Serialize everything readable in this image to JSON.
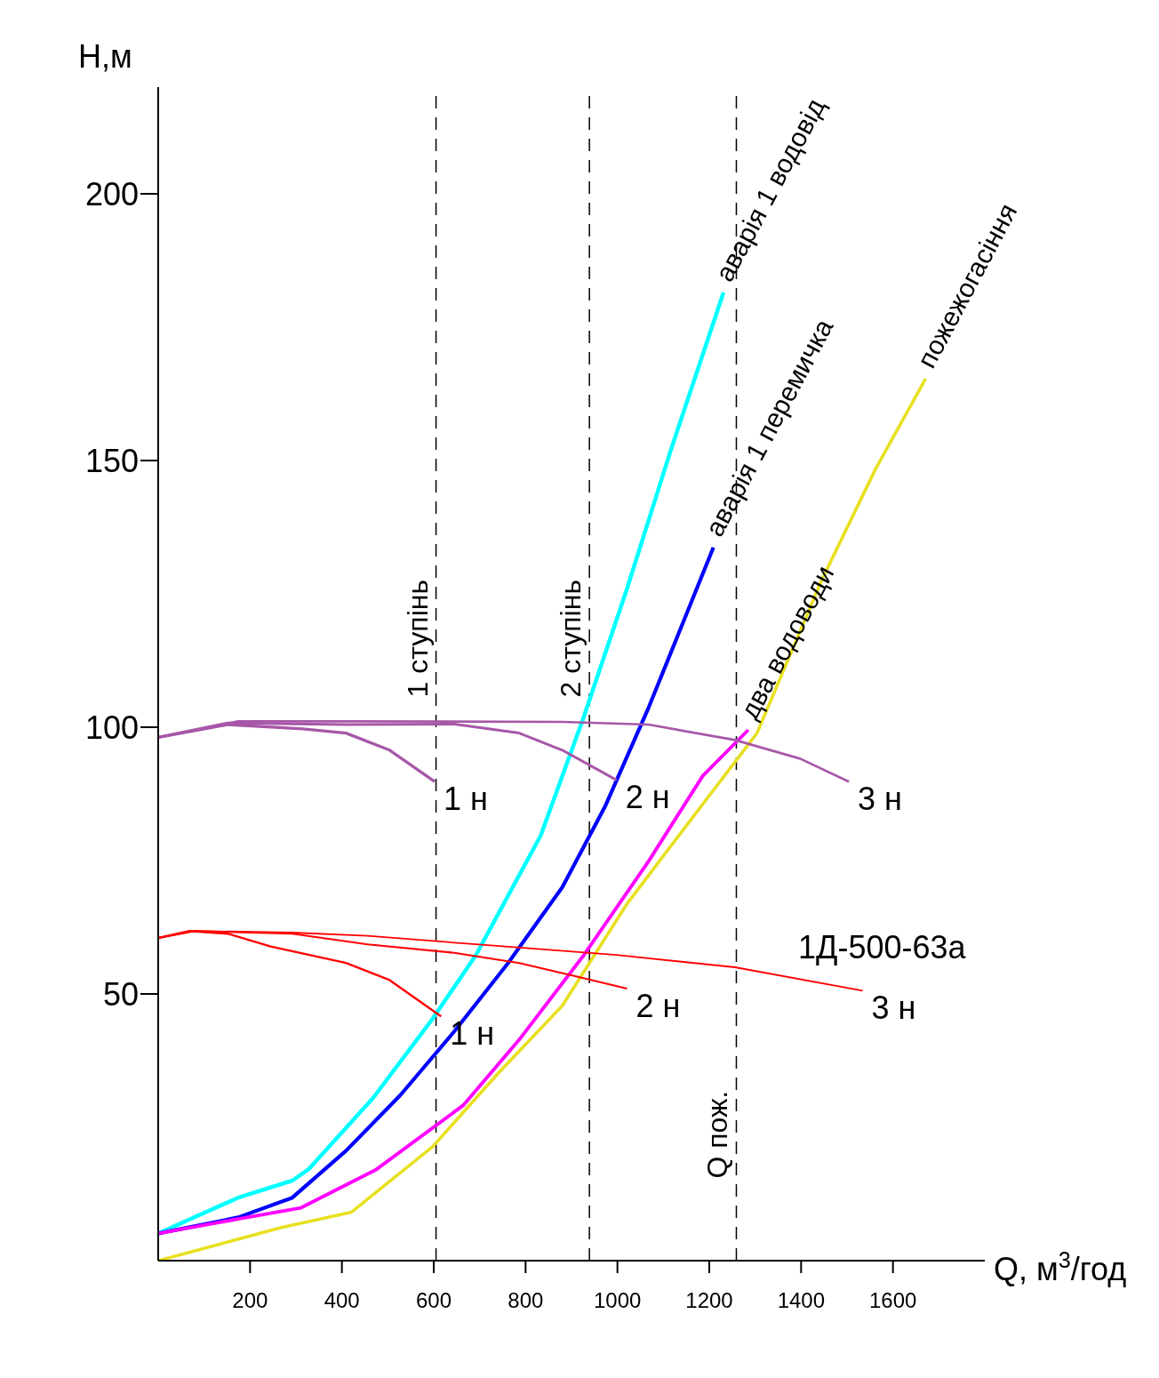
{
  "chart_data": {
    "type": "line",
    "xlabel": "Q, м$^{3}$/год",
    "ylabel": "H,м",
    "xlim": [
      0,
      1800
    ],
    "ylim": [
      0,
      220
    ],
    "xticks": [
      200,
      400,
      600,
      800,
      1000,
      1200,
      1400,
      1600
    ],
    "yticks": [
      50,
      100,
      150,
      200
    ],
    "marker": "none",
    "line_style": "solid",
    "series": [
      {
        "name": "аварія 1 водовід",
        "color": "#00ffff",
        "x": [
          0,
          174,
          292,
          327,
          468,
          598,
          692,
          833,
          927,
          1021,
          1115,
          1231
        ],
        "values": [
          5.1,
          11.8,
          15,
          17.1,
          30.5,
          45.4,
          57.3,
          79.7,
          102,
          126,
          151.6,
          181.5
        ]
      },
      {
        "name": "аварія 1 перемичка",
        "color": "#0000ff",
        "x": [
          0,
          174,
          292,
          409,
          527,
          645,
          762,
          880,
          974,
          1068,
          1139,
          1209
        ],
        "values": [
          5.1,
          8.1,
          11.8,
          20.6,
          31,
          43,
          55.8,
          70,
          85.3,
          103.7,
          118.8,
          133.7
        ]
      },
      {
        "name": "два водоводи",
        "color": "#ff00ff",
        "x": [
          0,
          174,
          311,
          475,
          664,
          786,
          927,
          1068,
          1186,
          1285
        ],
        "values": [
          5.1,
          7.8,
          9.9,
          17.1,
          29.1,
          41.4,
          57.3,
          74.9,
          90.9,
          99.5
        ]
      },
      {
        "name": "пожежогасіння",
        "color": "#e8e020",
        "x": [
          0,
          268,
          421,
          598,
          739,
          880,
          1021,
          1162,
          1304,
          1445,
          1562,
          1671
        ],
        "values": [
          0,
          6.2,
          9.1,
          21.4,
          35,
          47.8,
          66.9,
          82.9,
          98.9,
          127.6,
          148.4,
          165.3
        ]
      },
      {
        "color": "#a757a8",
        "x": [
          0,
          151,
          315,
          409,
          504,
          602
        ],
        "values": [
          98.1,
          100.5,
          99.7,
          98.9,
          95.7,
          89.8
        ]
      },
      {
        "color": "#a757a8",
        "x": [
          0,
          151,
          409,
          645,
          786,
          880,
          998
        ],
        "values": [
          98.1,
          100.8,
          100.5,
          100.6,
          98.9,
          95.7,
          90.1
        ]
      },
      {
        "color": "#a757a8",
        "x": [
          0,
          174,
          409,
          880,
          1068,
          1256,
          1398,
          1504
        ],
        "values": [
          98.1,
          101.1,
          101.1,
          101,
          100.5,
          97.6,
          94.1,
          89.8
        ]
      },
      {
        "color": "#ff0000",
        "x": [
          0,
          68,
          151,
          245,
          409,
          504,
          616
        ],
        "values": [
          60.5,
          61.8,
          61.3,
          58.9,
          55.8,
          52.6,
          45.8
        ]
      },
      {
        "color": "#ff0000",
        "x": [
          0,
          80,
          292,
          456,
          645,
          786,
          904,
          1021
        ],
        "values": [
          60.5,
          61.8,
          61.3,
          59.3,
          57.7,
          55.8,
          53.4,
          51
        ]
      },
      {
        "color": "#ff0000",
        "x": [
          0,
          80,
          292,
          456,
          692,
          998,
          1256,
          1534
        ],
        "values": [
          60.5,
          61.8,
          61.5,
          60.9,
          59.3,
          57.3,
          55,
          50.6
        ]
      }
    ],
    "ref_lines": [
      {
        "axis": "x",
        "value": 605,
        "label": "1 ступінь",
        "color": "#000000",
        "line_style": "dashed"
      },
      {
        "axis": "x",
        "value": 939,
        "label": "2 ступінь",
        "color": "#000000",
        "line_style": "dashed"
      },
      {
        "axis": "x",
        "value": 1259,
        "label": "Q пож.",
        "color": "#000000",
        "line_style": "dashed"
      }
    ],
    "annotations": [
      {
        "text": "1 н",
        "x": 602,
        "y": 89.8
      },
      {
        "text": "2 н",
        "x": 998,
        "y": 90.1
      },
      {
        "text": "3 н",
        "x": 1504,
        "y": 89.8
      },
      "1Д-500-63а",
      {
        "text": "1 н",
        "x": 616,
        "y": 45.8
      },
      {
        "text": "2 н",
        "x": 1021,
        "y": 51
      },
      {
        "text": "3 н",
        "x": 1534,
        "y": 50.6
      }
    ]
  }
}
